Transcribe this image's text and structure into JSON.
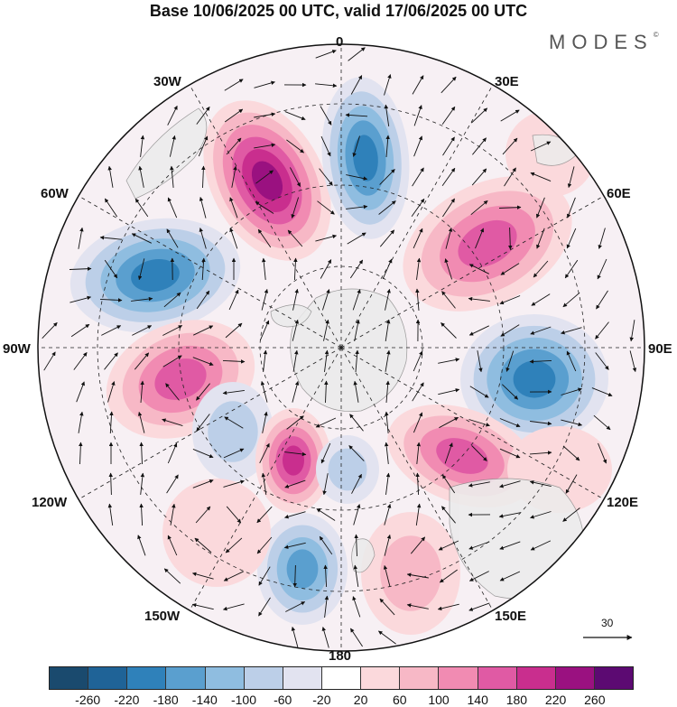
{
  "title": "Base 10/06/2025 00 UTC, valid 17/06/2025 00 UTC",
  "logo": "MODES",
  "logo_mark": "©",
  "longitude_labels": [
    "0",
    "30E",
    "60E",
    "90E",
    "120E",
    "150E",
    "180",
    "150W",
    "120W",
    "90W",
    "60W",
    "30W"
  ],
  "reference_vector_label": "30",
  "colorbar": {
    "ticks": [
      "-260",
      "-220",
      "-180",
      "-140",
      "-100",
      "-60",
      "-20",
      "20",
      "60",
      "100",
      "140",
      "180",
      "220",
      "260"
    ],
    "colors": [
      "#1a4a6e",
      "#1f6397",
      "#2f81ba",
      "#5a9fcf",
      "#8fbde0",
      "#bccfe8",
      "#e2e3f0",
      "#ffffff",
      "#fbd9dc",
      "#f7b8c6",
      "#f18bb2",
      "#e05aa4",
      "#c92e8e",
      "#9a1180",
      "#5c0a72"
    ]
  },
  "colors": {
    "land": "#ebebeb",
    "coast": "#8a8a8a",
    "grid": "#222222"
  }
}
